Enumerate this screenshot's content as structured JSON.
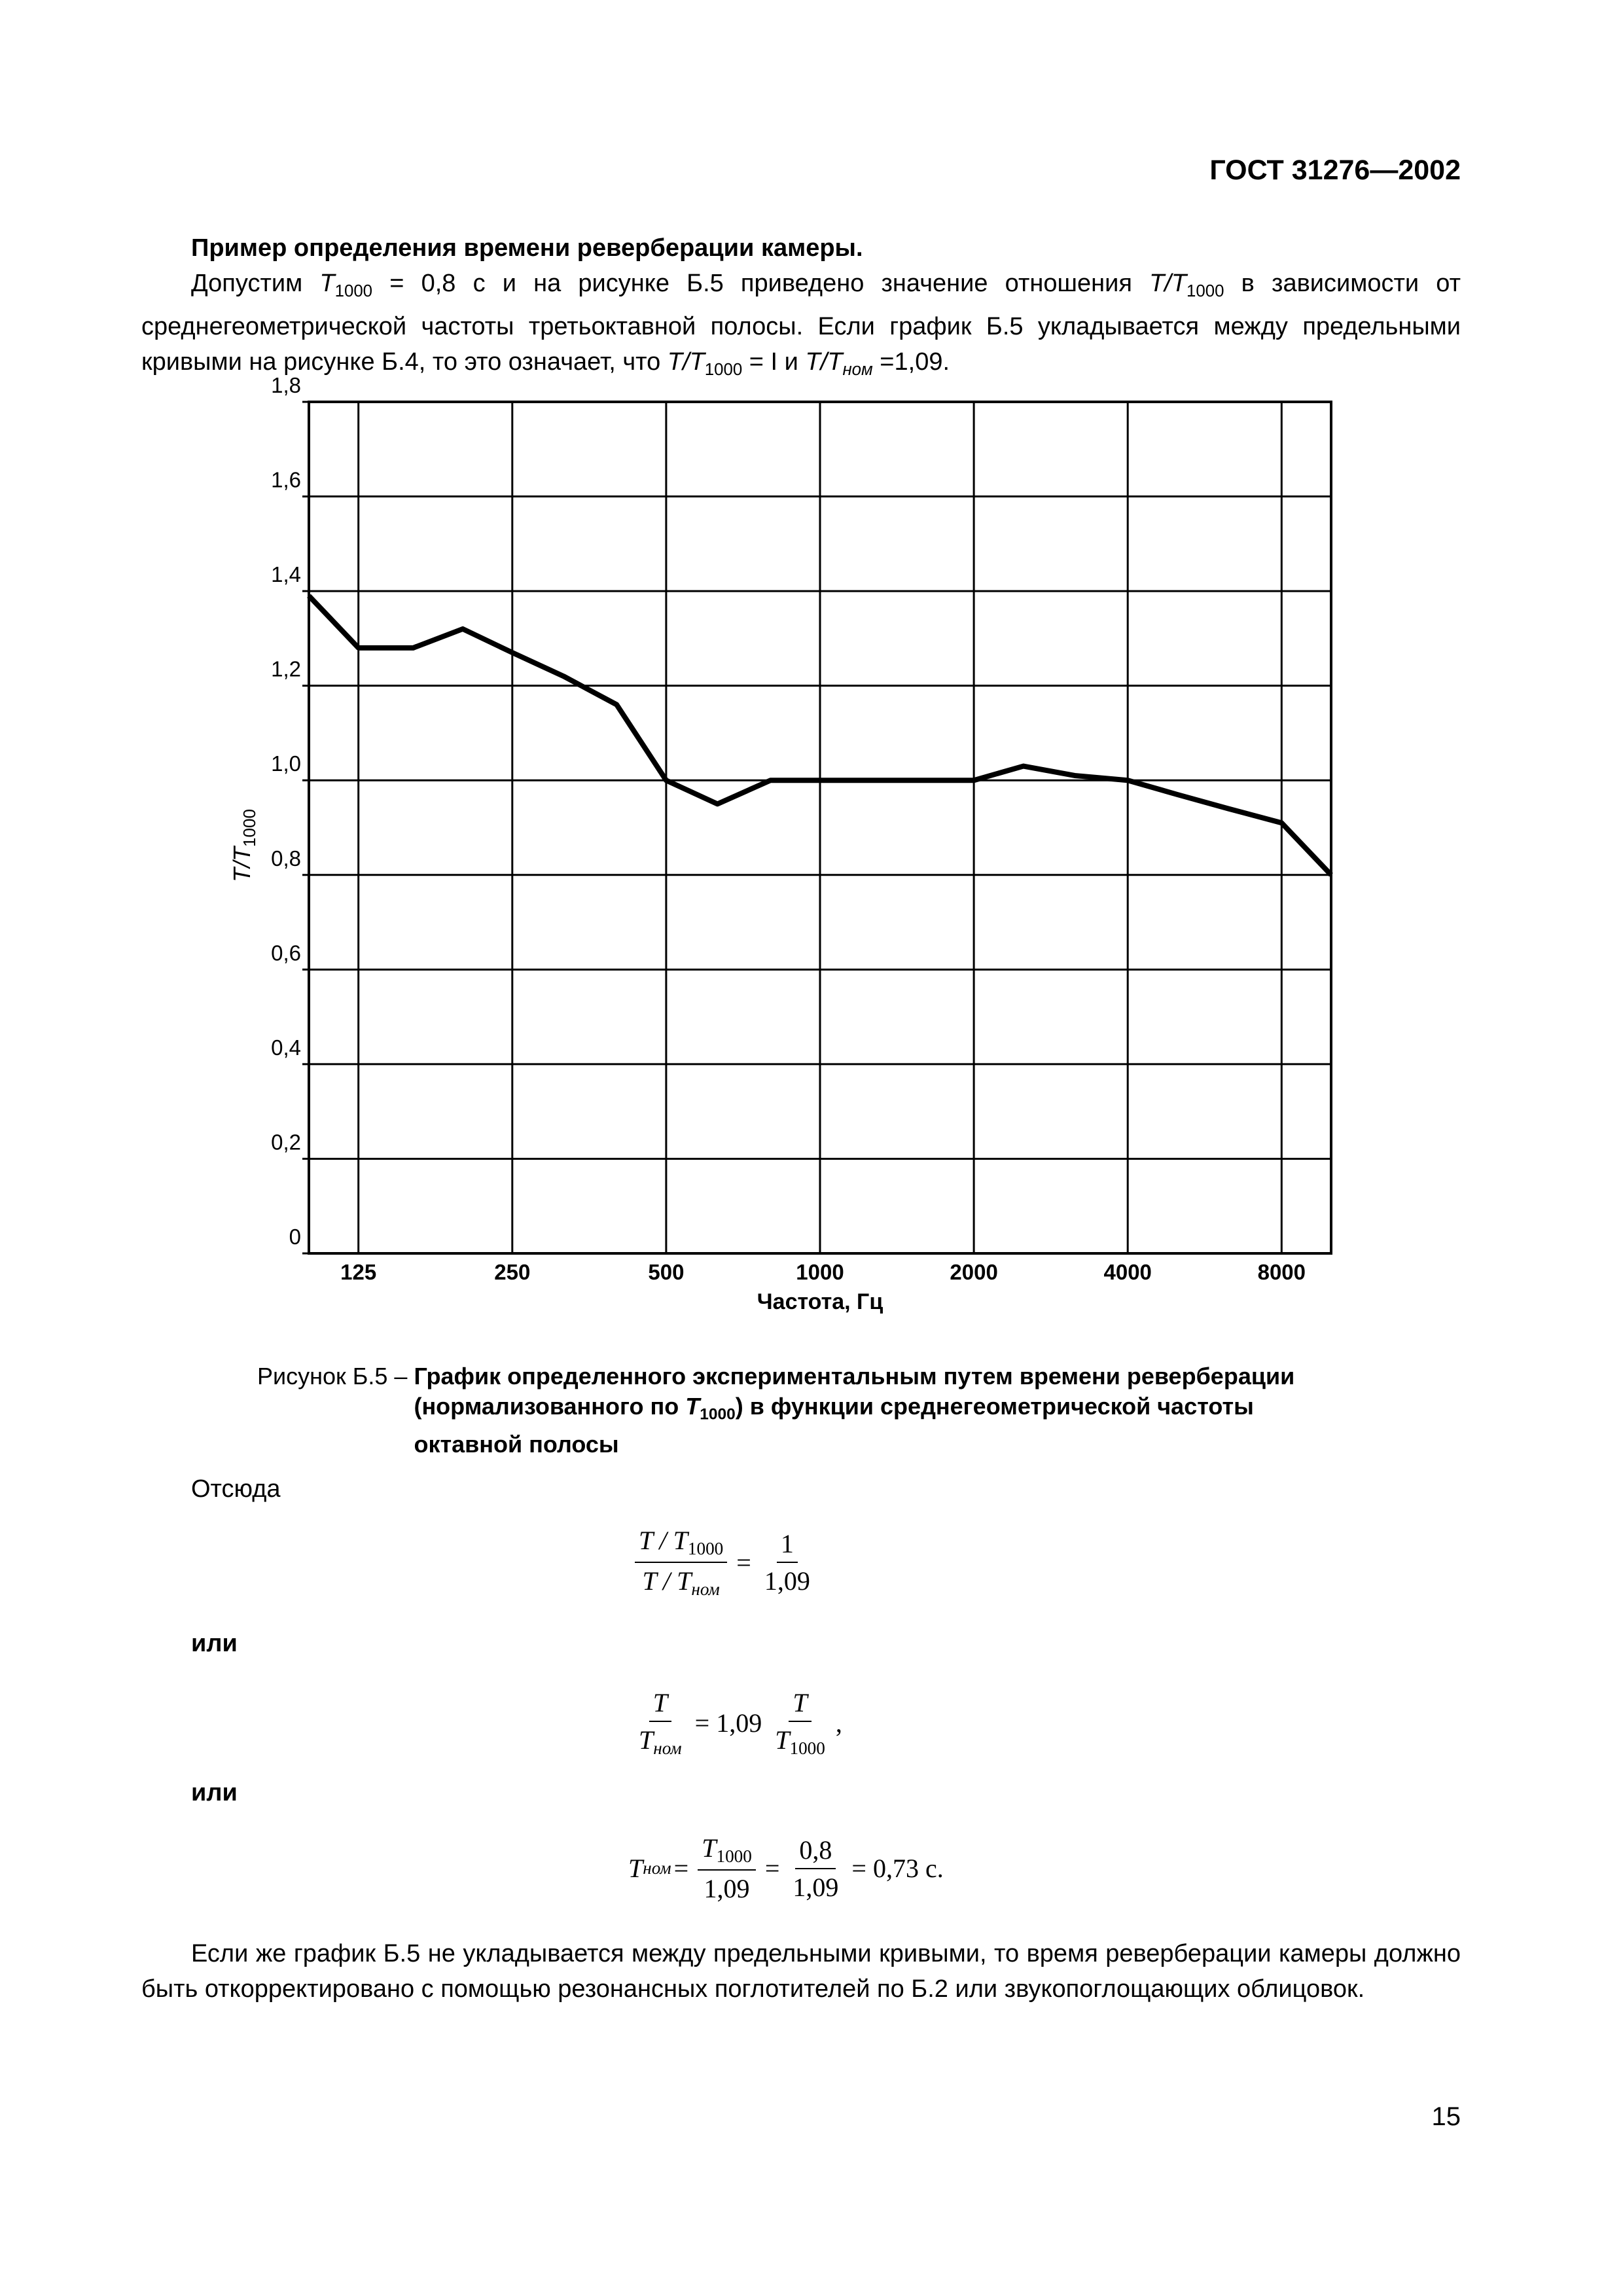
{
  "header": {
    "doc_number": "ГОСТ 31276—2002"
  },
  "example_title": "Пример определения времени реверберации камеры.",
  "paragraph": [
    "Допустим ",
    "T",
    "1000",
    " = 0,8 с и на рисунке Б.5 приведено значение отношения ",
    "T/T",
    "1000",
    " в зависимости от среднегеометрической частоты третьоктавной полосы. Если график Б.5 укладывается между предельными кривыми на рисунке Б.4, то это означает, что ",
    "T/T",
    "1000",
    " = I и ",
    "T/T",
    "ном",
    " =1,09."
  ],
  "chart_data": {
    "type": "line",
    "ylabel": "T/T",
    "ylabel_sub": "1000",
    "xlabel": "Частота, Гц",
    "x": [
      100,
      125,
      160,
      200,
      250,
      315,
      400,
      500,
      630,
      800,
      1000,
      1250,
      1600,
      2000,
      2500,
      3150,
      4000,
      5000,
      6300,
      8000,
      10000
    ],
    "values": [
      1.39,
      1.28,
      1.28,
      1.32,
      1.27,
      1.22,
      1.16,
      1.0,
      0.95,
      1.0,
      1.0,
      1.0,
      1.0,
      1.0,
      1.03,
      1.01,
      1.0,
      0.97,
      0.94,
      0.91,
      0.8
    ],
    "color": "#000000",
    "xscale": "log",
    "xlim": [
      100,
      10000
    ],
    "xticks": [
      125,
      250,
      500,
      1000,
      2000,
      4000,
      8000
    ],
    "ylim": [
      0,
      1.8
    ],
    "yticks": [
      0,
      {
        "value": 0.2,
        "label": "0,2"
      },
      {
        "value": 0.4,
        "label": "0,4"
      },
      {
        "value": 0.6,
        "label": "0,6"
      },
      {
        "value": 0.8,
        "label": "0,8"
      },
      {
        "value": 1.0,
        "label": "1,0"
      },
      {
        "value": 1.2,
        "label": "1,2"
      },
      {
        "value": 1.4,
        "label": "1,4"
      },
      {
        "value": 1.6,
        "label": "1,6"
      },
      {
        "value": 1.8,
        "label": "1,8"
      }
    ],
    "grid": true
  },
  "caption": {
    "label": "Рисунок Б.5 – ",
    "text": [
      "График определенного экспериментальным путем времени реверберации (нормализованного по ",
      "T",
      "1000",
      ") в функции среднегеометрической частоты октавной полосы"
    ]
  },
  "hence": "Отсюда",
  "or_1": "или",
  "or_2": "или",
  "formulas": [
    [
      "T / T",
      "1000",
      "T / T",
      "ном",
      "=",
      "1",
      "1,09"
    ],
    [
      "T",
      "T",
      "ном",
      "= 1,09",
      "T",
      "T",
      "1000",
      ","
    ],
    [
      "T",
      "ном",
      "=",
      "T",
      "1000",
      "1,09",
      "=",
      "0,8",
      "1,09",
      "= 0,73 с."
    ]
  ],
  "closing": "Если же график Б.5 не укладывается между предельными кривыми, то время реверберации камеры должно быть откорректировано с помощью резонансных поглотителей по Б.2 или звукопоглощающих облицовок.",
  "page_number": "15"
}
